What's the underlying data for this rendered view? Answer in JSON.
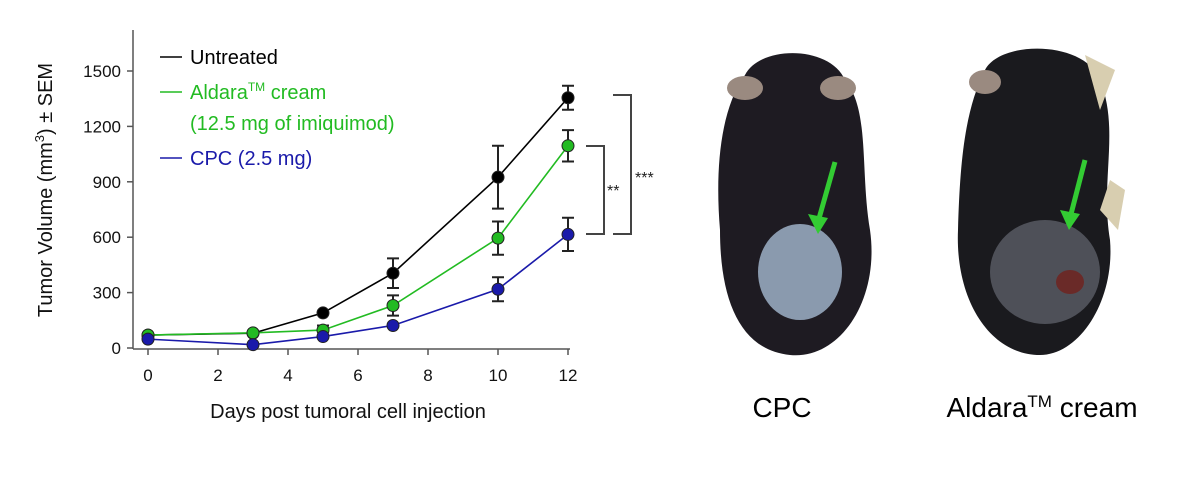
{
  "chart_data": {
    "type": "line",
    "title": "",
    "xlabel": "Days post tumoral cell injection",
    "ylabel": "Tumor Volume (mm3) ± SEM",
    "ylabel_parts": {
      "pre": "Tumor Volume (mm",
      "sup": "3",
      "post": ") ± SEM"
    },
    "xlim": [
      0,
      12
    ],
    "ylim": [
      0,
      1500
    ],
    "xticks": [
      0,
      2,
      4,
      6,
      8,
      10,
      12
    ],
    "yticks": [
      0,
      300,
      600,
      900,
      1200,
      1500
    ],
    "grid": false,
    "legend_position": "top-left",
    "x": [
      0,
      3,
      5,
      7,
      10,
      12
    ],
    "series": [
      {
        "name": "Untreated",
        "legend_lines": [
          "Untreated"
        ],
        "color": "#000000",
        "values": [
          70,
          80,
          190,
          405,
          925,
          1355
        ],
        "errors": [
          10,
          10,
          15,
          80,
          170,
          65
        ]
      },
      {
        "name": "Aldara™ cream (12.5 mg of imiquimod)",
        "legend_lines": [
          "Aldara",
          "TM",
          " cream",
          "(12.5 mg of imiquimod)"
        ],
        "color": "#22bb22",
        "values": [
          70,
          82,
          97,
          230,
          595,
          1095
        ],
        "errors": [
          10,
          10,
          25,
          55,
          90,
          85
        ]
      },
      {
        "name": "CPC (2.5 mg)",
        "legend_lines": [
          "CPC (2.5 mg)"
        ],
        "color": "#1a1aaa",
        "values": [
          48,
          18,
          62,
          122,
          318,
          615
        ],
        "errors": [
          8,
          8,
          12,
          15,
          65,
          90
        ]
      }
    ],
    "annotations": [
      {
        "label": "**",
        "between": [
          "Aldara™ cream",
          "CPC (2.5 mg)"
        ]
      },
      {
        "label": "***",
        "between": [
          "Untreated",
          "CPC (2.5 mg)"
        ]
      }
    ]
  },
  "photos": {
    "left_caption": "CPC",
    "right_caption_pre": "Aldara",
    "right_caption_sup": "TM",
    "right_caption_post": " cream",
    "arrow_color": "#33cc33"
  }
}
